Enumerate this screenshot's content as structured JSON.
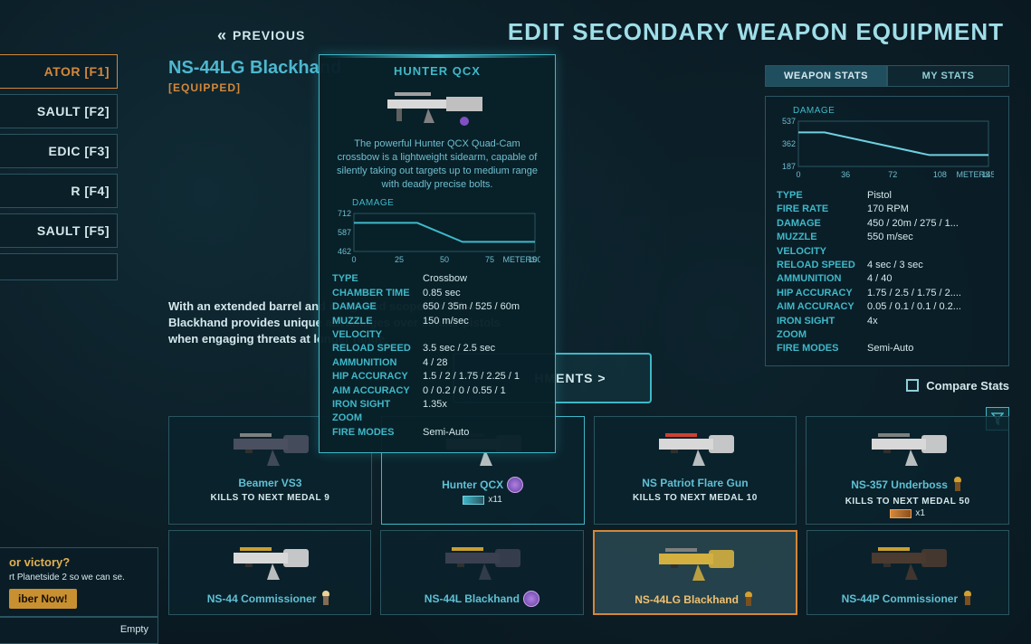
{
  "header": {
    "previous_label": "PREVIOUS",
    "page_title": "EDIT SECONDARY WEAPON EQUIPMENT"
  },
  "sidebar": {
    "items": [
      {
        "label": "ATOR [F1]",
        "active": true
      },
      {
        "label": "SAULT [F2]",
        "active": false
      },
      {
        "label": "EDIC [F3]",
        "active": false
      },
      {
        "label": "R [F4]",
        "active": false
      },
      {
        "label": "SAULT [F5]",
        "active": false
      }
    ]
  },
  "current_weapon": {
    "name": "NS-44LG Blackhand",
    "equipped_tag": "[EQUIPPED]",
    "description": "With an extended barrel and integrated scope the NS-44L Blackhand provides unique advantages over similar pistols when engaging threats at longer range.",
    "attachments_btn": "HMENTS >"
  },
  "tooltip": {
    "title": "HUNTER QCX",
    "description": "The powerful Hunter QCX Quad-Cam crossbow is a lightweight sidearm, capable of silently taking out targets up to medium range with deadly precise bolts.",
    "damage_chart": {
      "type": "line",
      "label": "DAMAGE",
      "x_label": "METERS",
      "xlim": [
        0,
        100
      ],
      "ylim": [
        462,
        712
      ],
      "xticks": [
        0,
        25,
        50,
        75,
        100
      ],
      "yticks": [
        462,
        587,
        712
      ],
      "points": [
        [
          0,
          650
        ],
        [
          35,
          650
        ],
        [
          60,
          525
        ],
        [
          100,
          525
        ]
      ],
      "line_color": "#3fb8c8",
      "grid_color": "#2a5560",
      "bg_color": "transparent",
      "label_color": "#6fbfd0",
      "fontsize": 9
    },
    "stats": [
      {
        "label": "TYPE",
        "value": "Crossbow"
      },
      {
        "label": "CHAMBER TIME",
        "value": "0.85 sec"
      },
      {
        "label": "DAMAGE",
        "value": "650 / 35m / 525 / 60m"
      },
      {
        "label": "MUZZLE VELOCITY",
        "value": "150 m/sec"
      },
      {
        "label": "RELOAD SPEED",
        "value": "3.5 sec / 2.5 sec"
      },
      {
        "label": "AMMUNITION",
        "value": "4 / 28"
      },
      {
        "label": "HIP ACCURACY",
        "value": "1.5 / 2 / 1.75 / 2.25 / 1"
      },
      {
        "label": "AIM ACCURACY",
        "value": "0 / 0.2 / 0 / 0.55 / 1"
      },
      {
        "label": "IRON SIGHT ZOOM",
        "value": "1.35x"
      },
      {
        "label": "FIRE MODES",
        "value": "Semi-Auto"
      }
    ]
  },
  "right_panel": {
    "tabs": {
      "weapon_stats": "WEAPON STATS",
      "my_stats": "MY STATS"
    },
    "damage_chart": {
      "type": "line",
      "label": "DAMAGE",
      "x_label": "METERS",
      "xlim": [
        0,
        145
      ],
      "ylim": [
        187,
        537
      ],
      "xticks": [
        0,
        36,
        72,
        108,
        145
      ],
      "yticks": [
        187,
        362,
        537
      ],
      "points": [
        [
          0,
          450
        ],
        [
          20,
          450
        ],
        [
          100,
          275
        ],
        [
          145,
          275
        ]
      ],
      "line_color": "#6fd0e0",
      "grid_color": "#2a5560",
      "bg_color": "transparent",
      "label_color": "#6fbfd0",
      "fontsize": 9
    },
    "stats": [
      {
        "label": "TYPE",
        "value": "Pistol"
      },
      {
        "label": "FIRE RATE",
        "value": "170 RPM"
      },
      {
        "label": "DAMAGE",
        "value": "450 / 20m / 275 / 1..."
      },
      {
        "label": "MUZZLE VELOCITY",
        "value": "550 m/sec"
      },
      {
        "label": "RELOAD SPEED",
        "value": "4 sec / 3 sec"
      },
      {
        "label": "AMMUNITION",
        "value": "4 / 40"
      },
      {
        "label": "HIP ACCURACY",
        "value": "1.75 / 2.5 / 1.75 / 2...."
      },
      {
        "label": "AIM ACCURACY",
        "value": "0.05 / 0.1 / 0.1 / 0.2..."
      },
      {
        "label": "IRON SIGHT ZOOM",
        "value": "4x"
      },
      {
        "label": "FIRE MODES",
        "value": "Semi-Auto"
      }
    ],
    "compare_label": "Compare Stats"
  },
  "weapon_grid": {
    "rows": [
      [
        {
          "name": "Beamer VS3",
          "kills_label": "KILLS TO NEXT MEDAL",
          "kills_value": "9",
          "icon_color": "#4a5060",
          "selected": false
        },
        {
          "name": "Hunter QCX",
          "kills_label": "",
          "kills_value": "",
          "extra_count": "x11",
          "extra_style": "teal",
          "badge": "purple",
          "icon_color": "#d8d8d8",
          "highlighted": true
        },
        {
          "name": "NS Patriot Flare Gun",
          "kills_label": "KILLS TO NEXT MEDAL",
          "kills_value": "10",
          "icon_color": "#d8d8d8",
          "accent": "#d04030"
        },
        {
          "name": "NS-357 Underboss",
          "kills_label": "KILLS TO NEXT MEDAL",
          "kills_value": "50",
          "extra_count": "x1",
          "extra_style": "orange",
          "badge": "gold",
          "icon_color": "#d8d8d8"
        }
      ],
      [
        {
          "name": "NS-44 Commissioner",
          "kills_label": "",
          "badge": "silver",
          "icon_color": "#d8d8d8",
          "accent": "#c8a030"
        },
        {
          "name": "NS-44L Blackhand",
          "kills_label": "",
          "badge": "purple",
          "icon_color": "#3a4050",
          "accent": "#c8a030"
        },
        {
          "name": "NS-44LG Blackhand",
          "kills_label": "",
          "badge": "gold",
          "selected": true,
          "icon_color": "#d4b040"
        },
        {
          "name": "NS-44P Commissioner",
          "kills_label": "",
          "badge": "gold",
          "icon_color": "#4a3a30",
          "accent": "#c8a030"
        }
      ]
    ]
  },
  "membership": {
    "title": "or victory?",
    "text": "rt Planetside 2 so we can se.",
    "button": "iber Now!"
  },
  "empty_slot": {
    "label": "Empty"
  }
}
